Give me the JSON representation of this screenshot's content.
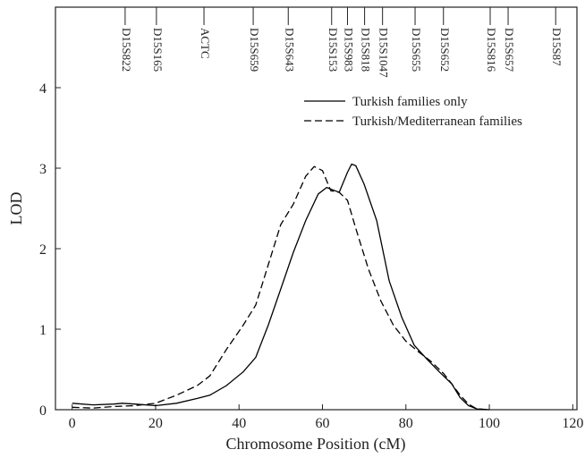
{
  "chart_data": {
    "type": "line",
    "xlabel": "Chromosome Position (cM)",
    "ylabel": "LOD",
    "xlim": [
      -4,
      121
    ],
    "ylim": [
      0,
      5
    ],
    "xticks": [
      0,
      20,
      40,
      60,
      80,
      100,
      120
    ],
    "yticks": [
      0,
      1,
      2,
      3,
      4
    ],
    "legend": "upper right",
    "markers": {
      "labels": [
        "D15S822",
        "D15S165",
        "ACTC",
        "D15S659",
        "D15S643",
        "D15S153",
        "D15S983",
        "D15S818",
        "D15S1047",
        "D15S655",
        "D15S652",
        "D15S816",
        "D15S657",
        "D15S87"
      ],
      "positions": [
        12.7,
        20.2,
        31.6,
        43.4,
        51.8,
        62.2,
        66,
        70.1,
        74.4,
        82.2,
        89,
        100.2,
        104.5,
        115.9
      ]
    },
    "series": [
      {
        "name": "Turkish families only",
        "color": "#000000",
        "dash": "solid",
        "x": [
          0,
          5,
          10,
          12,
          15,
          20,
          25,
          30,
          33,
          37,
          41,
          44,
          47,
          50,
          53,
          56,
          59,
          61,
          63,
          64,
          66,
          67,
          68,
          70,
          73,
          76,
          79,
          82,
          85,
          88,
          91,
          93,
          95,
          97,
          100
        ],
        "values": [
          0.08,
          0.06,
          0.07,
          0.08,
          0.07,
          0.05,
          0.08,
          0.14,
          0.18,
          0.3,
          0.47,
          0.65,
          1.05,
          1.5,
          1.95,
          2.35,
          2.68,
          2.76,
          2.72,
          2.7,
          2.95,
          3.05,
          3.03,
          2.8,
          2.35,
          1.6,
          1.15,
          0.8,
          0.63,
          0.47,
          0.32,
          0.15,
          0.05,
          0.01,
          0
        ]
      },
      {
        "name": "Turkish/Mediterranean families",
        "color": "#000000",
        "dash": "dashed",
        "x": [
          0,
          5,
          10,
          15,
          20,
          25,
          30,
          33,
          37,
          41,
          44,
          47,
          50,
          53,
          56,
          58,
          60,
          62,
          64,
          66,
          68,
          71,
          74,
          77,
          80,
          83,
          86,
          89,
          91,
          93,
          95,
          97,
          100
        ],
        "values": [
          0.03,
          0.02,
          0.04,
          0.05,
          0.08,
          0.18,
          0.3,
          0.42,
          0.75,
          1.05,
          1.3,
          1.8,
          2.3,
          2.55,
          2.9,
          3.02,
          2.97,
          2.72,
          2.7,
          2.6,
          2.25,
          1.75,
          1.35,
          1.05,
          0.85,
          0.72,
          0.6,
          0.45,
          0.32,
          0.18,
          0.07,
          0.01,
          0
        ]
      }
    ]
  }
}
